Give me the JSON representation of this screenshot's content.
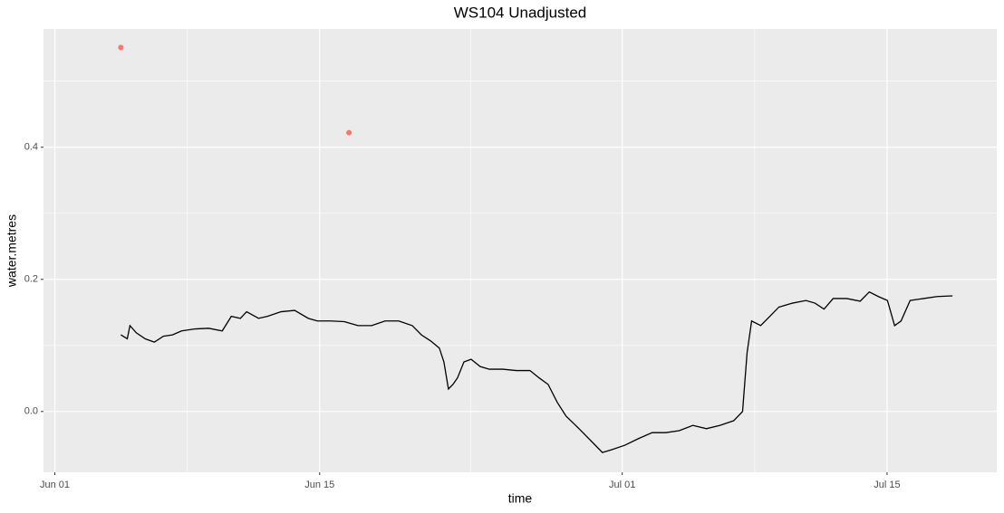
{
  "chart_data": {
    "type": "line",
    "title": "WS104 Unadjusted",
    "x_label": "time",
    "y_label": "water.metres",
    "xlim": [
      -0.6,
      49.8
    ],
    "ylim": [
      -0.092,
      0.579
    ],
    "xticks": [
      {
        "value": 0,
        "label": "Jun 01"
      },
      {
        "value": 14,
        "label": "Jun 15"
      },
      {
        "value": 30,
        "label": "Jul 01"
      },
      {
        "value": 44,
        "label": "Jul 15"
      }
    ],
    "yticks": [
      {
        "value": 0,
        "label": "0.0"
      },
      0.2,
      0.4
    ],
    "x_minor_ticks": [
      7,
      22,
      37
    ],
    "y_minor_ticks": [
      0.1,
      0.3,
      0.5
    ],
    "grid": true,
    "series": [
      {
        "style": "line",
        "color": "#000000",
        "x": [
          3.49,
          3.83,
          3.97,
          4.31,
          4.78,
          5.26,
          5.74,
          6.22,
          6.7,
          7.42,
          8.13,
          8.85,
          9.33,
          9.81,
          10.14,
          10.77,
          11.24,
          11.96,
          12.68,
          13.4,
          13.88,
          14.59,
          15.31,
          16.03,
          16.75,
          17.46,
          18.18,
          18.9,
          19.38,
          19.86,
          20.33,
          20.57,
          20.81,
          21.05,
          21.29,
          21.63,
          22.01,
          22.49,
          22.97,
          23.68,
          24.4,
          25.12,
          25.6,
          26.08,
          26.56,
          27.03,
          27.75,
          28.47,
          28.95,
          29.43,
          30.14,
          30.86,
          31.58,
          32.3,
          33.01,
          33.73,
          34.45,
          35.17,
          35.89,
          36.36,
          36.6,
          36.84,
          37.32,
          37.8,
          38.28,
          39.0,
          39.71,
          40.19,
          40.67,
          41.15,
          41.87,
          42.58,
          43.06,
          43.54,
          44.02,
          44.4,
          44.74,
          45.22,
          45.93,
          46.65,
          47.46
        ],
        "values": [
          0.116,
          0.11,
          0.13,
          0.119,
          0.11,
          0.105,
          0.114,
          0.116,
          0.122,
          0.125,
          0.126,
          0.122,
          0.144,
          0.141,
          0.151,
          0.141,
          0.144,
          0.151,
          0.153,
          0.141,
          0.137,
          0.137,
          0.136,
          0.13,
          0.13,
          0.137,
          0.137,
          0.13,
          0.116,
          0.107,
          0.096,
          0.075,
          0.034,
          0.041,
          0.051,
          0.075,
          0.079,
          0.068,
          0.064,
          0.064,
          0.062,
          0.062,
          0.051,
          0.041,
          0.014,
          -0.007,
          -0.027,
          -0.048,
          -0.062,
          -0.058,
          -0.051,
          -0.041,
          -0.032,
          -0.032,
          -0.029,
          -0.021,
          -0.026,
          -0.021,
          -0.014,
          0.0,
          0.089,
          0.137,
          0.13,
          0.144,
          0.158,
          0.164,
          0.168,
          0.164,
          0.155,
          0.171,
          0.171,
          0.167,
          0.181,
          0.174,
          0.168,
          0.13,
          0.137,
          0.168,
          0.171,
          0.174,
          0.175
        ]
      },
      {
        "style": "point",
        "color": "#f8766d",
        "x": [
          3.49,
          15.55
        ],
        "values": [
          0.551,
          0.422
        ]
      }
    ]
  }
}
